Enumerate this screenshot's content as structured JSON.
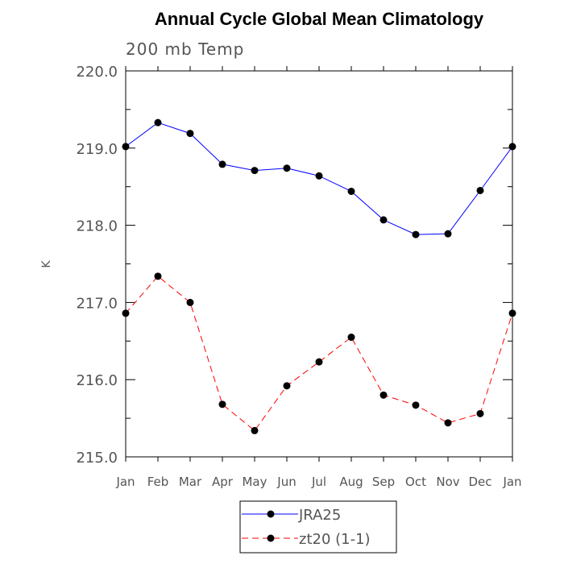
{
  "chart_data": {
    "type": "line",
    "title": "Annual Cycle Global Mean Climatology",
    "subtitle": "200 mb Temp",
    "xlabel": "",
    "ylabel": "K",
    "categories": [
      "Jan",
      "Feb",
      "Mar",
      "Apr",
      "May",
      "Jun",
      "Jul",
      "Aug",
      "Sep",
      "Oct",
      "Nov",
      "Dec",
      "Jan"
    ],
    "ylim": [
      215.0,
      220.0
    ],
    "yticks": [
      "215.0",
      "216.0",
      "217.0",
      "218.0",
      "219.0",
      "220.0"
    ],
    "grid": false,
    "legend_placement": "bottom",
    "series": [
      {
        "name": "JRA25",
        "color": "#0000ff",
        "dash": "solid",
        "values": [
          219.02,
          219.33,
          219.19,
          218.79,
          218.71,
          218.74,
          218.64,
          218.44,
          218.07,
          217.88,
          217.89,
          218.45,
          219.02
        ]
      },
      {
        "name": "zt20 (1-1)",
        "color": "#ff0000",
        "dash": "dashed",
        "values": [
          216.86,
          217.34,
          217.0,
          215.68,
          215.34,
          215.92,
          216.23,
          216.55,
          215.8,
          215.67,
          215.44,
          215.56,
          216.86
        ]
      }
    ]
  }
}
